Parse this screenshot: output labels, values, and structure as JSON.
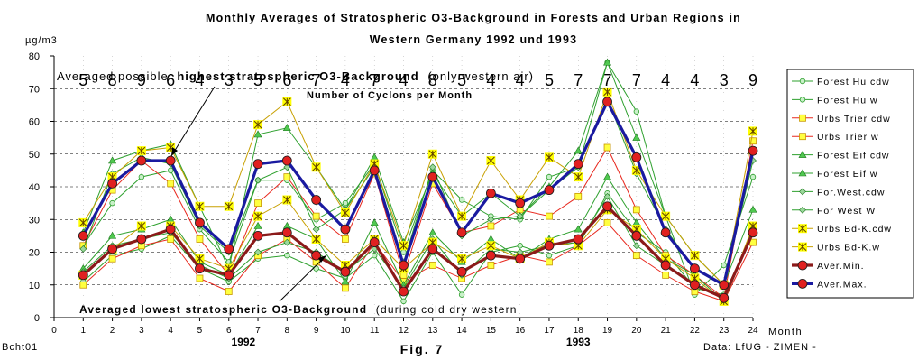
{
  "chart_data": {
    "type": "line",
    "title_lines": [
      "Monthly Averages of Stratospheric O3-Background in Forests and Urban Regions in",
      "Western Germany 1992 und 1993"
    ],
    "ylabel": "µg/m3",
    "xlabel": "Month",
    "ylim": [
      0,
      80
    ],
    "xlim": [
      0,
      24
    ],
    "y_ticks": [
      0,
      10,
      20,
      30,
      40,
      50,
      60,
      70,
      80
    ],
    "x_ticks": [
      0,
      1,
      2,
      3,
      4,
      5,
      6,
      7,
      8,
      9,
      10,
      11,
      12,
      13,
      14,
      15,
      16,
      17,
      18,
      19,
      20,
      21,
      22,
      23,
      24
    ],
    "year_labels": [
      {
        "text": "1992",
        "at_x": 6.5
      },
      {
        "text": "1993",
        "at_x": 18
      }
    ],
    "grid": "horizontal dashed",
    "cyclones": {
      "label": "Number of Cyclons per Month",
      "values": [
        "5",
        "8",
        "9",
        "6",
        "4",
        "3",
        "5",
        "6",
        "7",
        "4",
        "7",
        "4",
        "8",
        "5",
        "4",
        "4",
        "5",
        "7",
        "7",
        "7",
        "4",
        "4",
        "3",
        "9"
      ]
    },
    "annotations": {
      "high_prefix": "Averaged possible",
      "high_bold": "highest stratospheric O3-Background",
      "high_suffix": "(only western air)",
      "low_bold": "Averaged lowest stratospheric O3-Background",
      "low_suffix": "(during cold dry western"
    },
    "legend_position": "right",
    "series": [
      {
        "name": "Forest Hu cdw",
        "marker": "circle",
        "color": "#2ea02e",
        "values": [
          22,
          35,
          43,
          45,
          27,
          17,
          42,
          42,
          30,
          35,
          47,
          20,
          45,
          36,
          31,
          30,
          43,
          46,
          78,
          63,
          31,
          7,
          16,
          43
        ]
      },
      {
        "name": "Forest Hu w",
        "marker": "circle",
        "color": "#2ea02e",
        "values": [
          11,
          19,
          21,
          25,
          15,
          11,
          18,
          19,
          15,
          12,
          19,
          5,
          20,
          7,
          20,
          22,
          19,
          22,
          38,
          26,
          20,
          9,
          7,
          26
        ]
      },
      {
        "name": "Urbs Trier cdw",
        "marker": "square",
        "color": "#e8281e",
        "values": [
          22,
          39,
          48,
          41,
          24,
          13,
          35,
          43,
          31,
          24,
          44,
          13,
          41,
          26,
          28,
          33,
          31,
          37,
          52,
          33,
          19,
          13,
          6,
          54
        ]
      },
      {
        "name": "Urbs Trier w",
        "marker": "square",
        "color": "#e8281e",
        "values": [
          10,
          18,
          22,
          24,
          12,
          8,
          19,
          24,
          17,
          9,
          23,
          11,
          16,
          12,
          16,
          19,
          17,
          22,
          29,
          19,
          13,
          8,
          5,
          23
        ]
      },
      {
        "name": "Forest Eif cdw",
        "marker": "triangle",
        "color": "#2ea02e",
        "values": [
          26,
          48,
          51,
          53,
          34,
          15,
          56,
          58,
          46,
          33,
          49,
          23,
          44,
          31,
          38,
          31,
          40,
          51,
          78,
          55,
          31,
          19,
          10,
          33
        ]
      },
      {
        "name": "Forest Eif w",
        "marker": "triangle",
        "color": "#2ea02e",
        "values": [
          15,
          25,
          27,
          30,
          17,
          13,
          28,
          28,
          24,
          11,
          29,
          10,
          26,
          17,
          24,
          18,
          24,
          27,
          43,
          29,
          18,
          13,
          5,
          26
        ]
      },
      {
        "name": "For.West.cdw",
        "marker": "diamond",
        "color": "#2ea02e",
        "values": [
          21,
          44,
          49,
          47,
          28,
          20,
          42,
          46,
          27,
          33,
          46,
          17,
          46,
          25,
          30,
          31,
          39,
          46,
          67,
          44,
          27,
          15,
          10,
          48
        ]
      },
      {
        "name": "For West W",
        "marker": "diamond",
        "color": "#2ea02e",
        "values": [
          14,
          22,
          24,
          26,
          16,
          12,
          20,
          23,
          20,
          14,
          21,
          9,
          24,
          13,
          21,
          20,
          22,
          23,
          37,
          22,
          16,
          10,
          6,
          27
        ]
      },
      {
        "name": "Urbs Bd-K.cdw",
        "marker": "star",
        "color": "#c8a000",
        "values": [
          29,
          43,
          51,
          52,
          34,
          34,
          59,
          66,
          46,
          32,
          47,
          22,
          50,
          31,
          48,
          36,
          49,
          43,
          69,
          45,
          31,
          19,
          10,
          57
        ]
      },
      {
        "name": "Urbs Bd-K.w",
        "marker": "star",
        "color": "#c8a000",
        "values": [
          13,
          21,
          28,
          28,
          18,
          15,
          31,
          36,
          24,
          16,
          24,
          15,
          23,
          18,
          22,
          18,
          23,
          22,
          33,
          27,
          18,
          12,
          5,
          28
        ]
      },
      {
        "name": "Aver.Min.",
        "marker": "dot",
        "color": "#8b1a1a",
        "values": [
          13,
          21,
          24,
          27,
          15,
          13,
          25,
          26,
          19,
          14,
          23,
          8,
          21,
          14,
          19,
          18,
          22,
          24,
          34,
          25,
          16,
          10,
          6,
          26
        ]
      },
      {
        "name": "Aver.Max.",
        "marker": "dot",
        "color": "#1a1aa0",
        "values": [
          25,
          41,
          48,
          48,
          29,
          21,
          47,
          48,
          36,
          27,
          45,
          16,
          43,
          26,
          38,
          35,
          39,
          47,
          66,
          49,
          26,
          15,
          10,
          51
        ]
      }
    ]
  },
  "footer": {
    "left": "Bcht01",
    "center": "Fig. 7",
    "right": "Data: LfUG - ZIMEN -"
  }
}
